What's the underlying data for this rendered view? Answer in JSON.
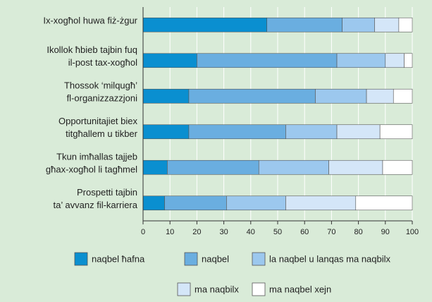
{
  "chart_data": {
    "type": "stacked-barh",
    "categories": [
      [
        "Ix-xogħol huwa fiż-żgur"
      ],
      [
        "Ikollok ħbieb tajbin fuq",
        "il-post tax-xogħol"
      ],
      [
        "Thossok ‘milqugħ’",
        "fl-organizzazzjoni"
      ],
      [
        "Opportunitajiet biex",
        "titgħallem u tikber"
      ],
      [
        "Tkun imħallas tajjeb",
        "għax-xogħol li tagħmel"
      ],
      [
        "Prospetti tajbin",
        "ta’ avvanz fil-karriera"
      ]
    ],
    "series": [
      {
        "name": "naqbel ħafna",
        "color": "#0a8fd0",
        "values": [
          46,
          20,
          17,
          17,
          9,
          8
        ]
      },
      {
        "name": "naqbel",
        "color": "#6aaee0",
        "values": [
          28,
          52,
          47,
          36,
          34,
          23
        ]
      },
      {
        "name": "la naqbel u lanqas ma naqbilx",
        "color": "#9cc8ee",
        "values": [
          12,
          18,
          19,
          19,
          26,
          22
        ]
      },
      {
        "name": "ma naqbilx",
        "color": "#d4e6f8",
        "values": [
          9,
          7,
          10,
          16,
          20,
          26
        ]
      },
      {
        "name": "ma naqbel xejn",
        "color": "#ffffff",
        "values": [
          5,
          3,
          7,
          12,
          11,
          21
        ]
      }
    ],
    "xlim": [
      0,
      100
    ],
    "xticks": [
      0,
      10,
      20,
      30,
      40,
      50,
      60,
      70,
      80,
      90,
      100
    ],
    "grid": true
  }
}
